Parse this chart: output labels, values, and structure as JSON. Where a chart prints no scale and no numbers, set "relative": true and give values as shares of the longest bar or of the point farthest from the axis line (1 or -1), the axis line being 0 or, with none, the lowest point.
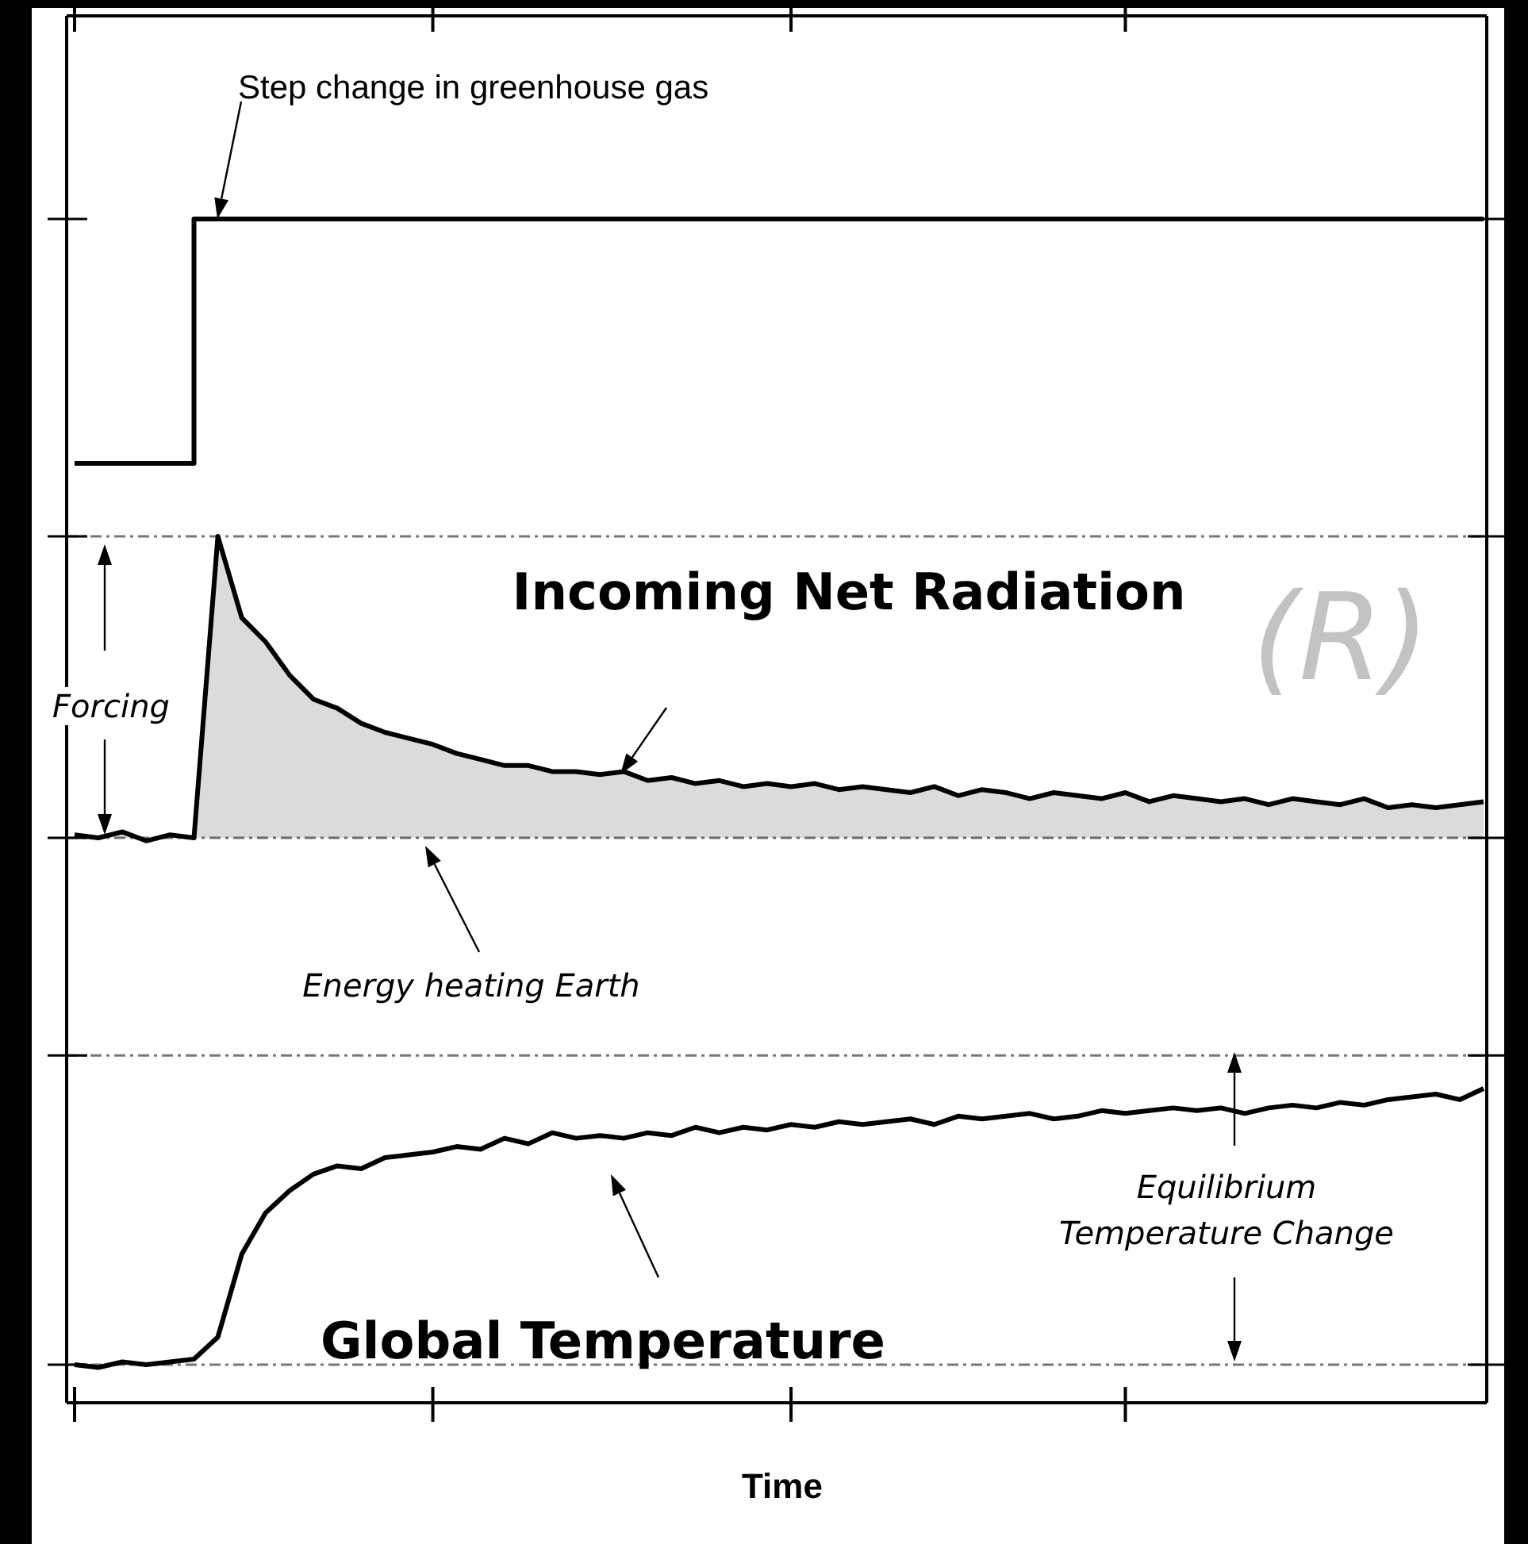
{
  "chart_data": [
    {
      "type": "step",
      "relative": true,
      "categories": [
        null,
        null,
        null,
        null,
        null,
        null,
        null,
        null,
        null,
        null,
        null,
        null,
        null,
        null,
        null,
        null,
        null,
        null,
        null,
        null,
        null,
        null,
        null,
        null,
        null,
        null,
        null,
        null,
        null,
        null,
        null,
        null,
        null,
        null,
        null,
        null,
        null,
        null,
        null,
        null,
        null,
        null,
        null,
        null,
        null,
        null,
        null,
        null,
        null,
        null,
        null,
        null,
        null,
        null,
        null,
        null,
        null,
        null,
        null,
        null
      ],
      "series": [
        {
          "color": "#000000",
          "values": [
            0,
            0,
            0,
            0,
            0,
            0,
            1,
            1,
            1,
            1,
            1,
            1,
            1,
            1,
            1,
            1,
            1,
            1,
            1,
            1,
            1,
            1,
            1,
            1,
            1,
            1,
            1,
            1,
            1,
            1,
            1,
            1,
            1,
            1,
            1,
            1,
            1,
            1,
            1,
            1,
            1,
            1,
            1,
            1,
            1,
            1,
            1,
            1,
            1,
            1,
            1,
            1,
            1,
            1,
            1,
            1,
            1,
            1,
            1,
            1
          ]
        }
      ],
      "annotations": [
        "Step change in greenhouse gas"
      ]
    },
    {
      "type": "area",
      "relative": true,
      "categories": [
        null,
        null,
        null,
        null,
        null,
        null,
        null,
        null,
        null,
        null,
        null,
        null,
        null,
        null,
        null,
        null,
        null,
        null,
        null,
        null,
        null,
        null,
        null,
        null,
        null,
        null,
        null,
        null,
        null,
        null,
        null,
        null,
        null,
        null,
        null,
        null,
        null,
        null,
        null,
        null,
        null,
        null,
        null,
        null,
        null,
        null,
        null,
        null,
        null,
        null,
        null,
        null,
        null,
        null,
        null,
        null,
        null,
        null,
        null,
        null
      ],
      "series": [
        {
          "color": "#000000",
          "values": [
            0.01,
            0,
            0.02,
            -0.01,
            0.01,
            0,
            1,
            0.73,
            0.65,
            0.54,
            0.46,
            0.43,
            0.38,
            0.35,
            0.33,
            0.31,
            0.28,
            0.26,
            0.24,
            0.24,
            0.22,
            0.22,
            0.21,
            0.22,
            0.19,
            0.2,
            0.18,
            0.19,
            0.17,
            0.18,
            0.17,
            0.18,
            0.16,
            0.17,
            0.16,
            0.15,
            0.17,
            0.14,
            0.16,
            0.15,
            0.13,
            0.15,
            0.14,
            0.13,
            0.15,
            0.12,
            0.14,
            0.13,
            0.12,
            0.13,
            0.11,
            0.13,
            0.12,
            0.11,
            0.13,
            0.1,
            0.11,
            0.1,
            0.11,
            0.12
          ]
        }
      ],
      "ref_lines": [
        {
          "axis": "y",
          "value": 1,
          "color": "#777777",
          "line_style": "dashed"
        },
        {
          "axis": "y",
          "value": 0,
          "color": "#777777",
          "line_style": "dashed"
        }
      ],
      "annotations": [
        "Incoming Net Radiation",
        "(R)",
        "Forcing",
        "Energy heating Earth"
      ]
    },
    {
      "type": "line",
      "relative": true,
      "categories": [
        null,
        null,
        null,
        null,
        null,
        null,
        null,
        null,
        null,
        null,
        null,
        null,
        null,
        null,
        null,
        null,
        null,
        null,
        null,
        null,
        null,
        null,
        null,
        null,
        null,
        null,
        null,
        null,
        null,
        null,
        null,
        null,
        null,
        null,
        null,
        null,
        null,
        null,
        null,
        null,
        null,
        null,
        null,
        null,
        null,
        null,
        null,
        null,
        null,
        null,
        null,
        null,
        null,
        null,
        null,
        null,
        null,
        null,
        null,
        null
      ],
      "series": [
        {
          "color": "#000000",
          "values": [
            0,
            -0.01,
            0.01,
            0,
            0.01,
            0.02,
            0.1,
            0.4,
            0.55,
            0.63,
            0.69,
            0.72,
            0.71,
            0.75,
            0.76,
            0.77,
            0.79,
            0.78,
            0.82,
            0.8,
            0.84,
            0.82,
            0.83,
            0.82,
            0.84,
            0.83,
            0.86,
            0.84,
            0.86,
            0.85,
            0.87,
            0.86,
            0.88,
            0.87,
            0.88,
            0.89,
            0.87,
            0.9,
            0.89,
            0.9,
            0.91,
            0.89,
            0.9,
            0.92,
            0.91,
            0.92,
            0.93,
            0.92,
            0.93,
            0.91,
            0.93,
            0.94,
            0.93,
            0.95,
            0.94,
            0.96,
            0.97,
            0.98,
            0.96,
            1
          ]
        }
      ],
      "ref_lines": [
        {
          "axis": "y",
          "value": 1.12,
          "color": "#777777",
          "line_style": "dashed"
        },
        {
          "axis": "y",
          "value": 0,
          "color": "#777777",
          "line_style": "dashed"
        }
      ],
      "xlabel": "Time",
      "annotations": [
        "Global Temperature",
        "Equilibrium Temperature Change"
      ]
    }
  ]
}
